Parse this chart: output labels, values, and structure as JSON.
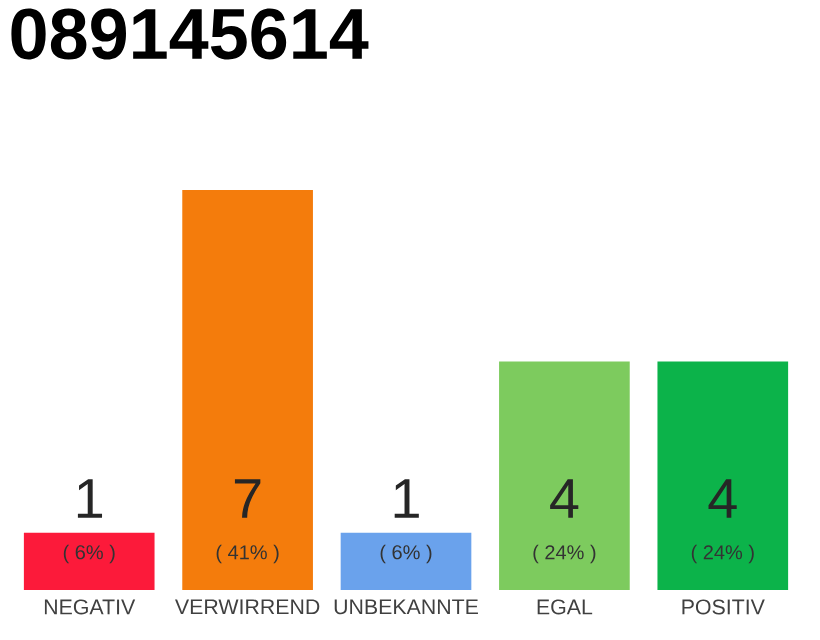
{
  "chart_data": {
    "type": "bar",
    "title": "089145614",
    "categories": [
      "NEGATIV",
      "VERWIRREND",
      "UNBEKANNTE",
      "EGAL",
      "POSITIV"
    ],
    "values": [
      1,
      7,
      1,
      4,
      4
    ],
    "colors": [
      "#fc1a3a",
      "#f47c0c",
      "#6aa2ec",
      "#7dcb5e",
      "#0cb34a"
    ],
    "ylim": [
      0,
      7
    ],
    "tick_labels": "x",
    "data_labels": true,
    "annotations": [
      "( 6% )",
      "( 41% )",
      "( 6% )",
      "( 24% )",
      "( 24% )"
    ]
  }
}
